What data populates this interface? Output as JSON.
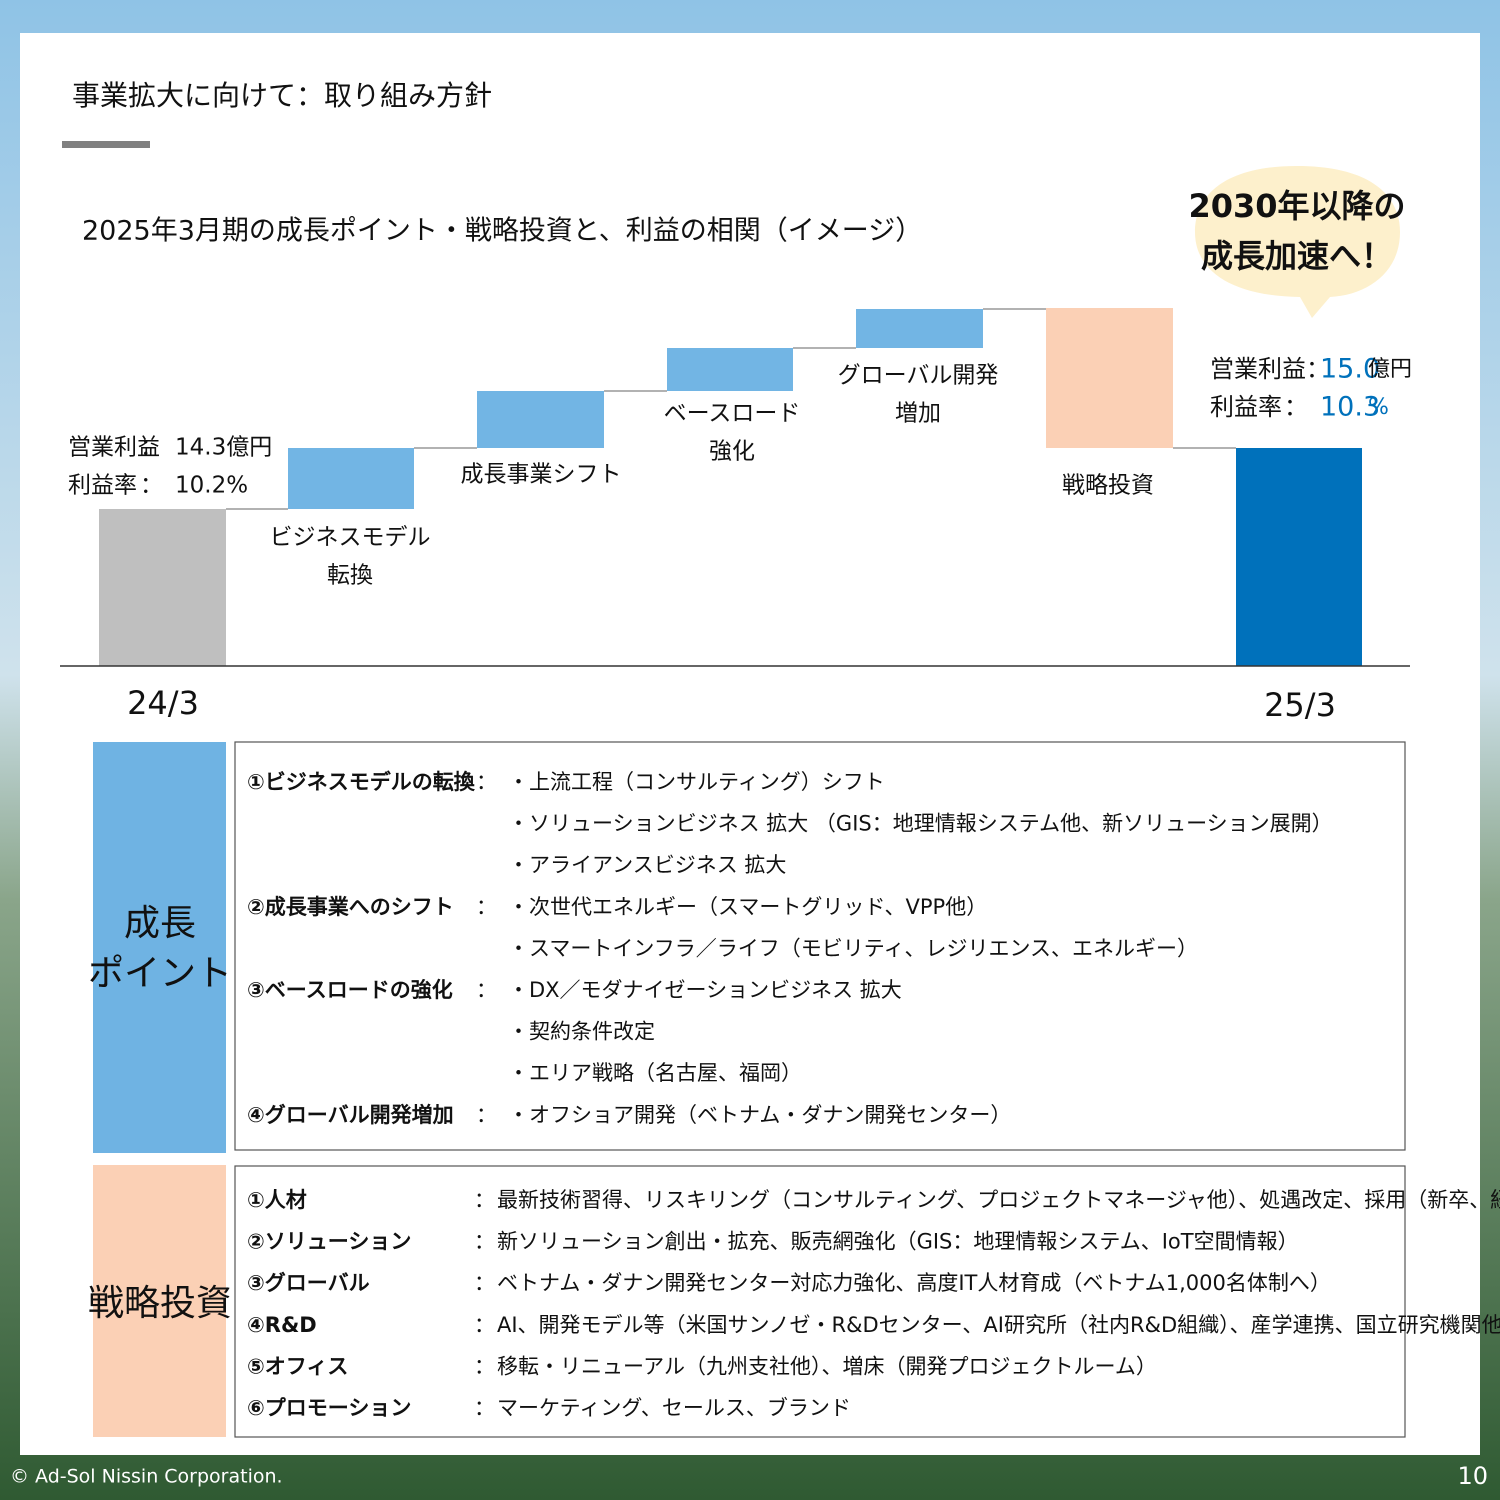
{
  "header": {
    "title": "事業拡大に向けて：取り組み方針"
  },
  "chart": {
    "subtitle": "2025年3月期の成長ポイント・戦略投資と、利益の相関（イメージ）",
    "callout": [
      "2030年以降の",
      "成長加速へ！"
    ],
    "start": {
      "profit_label": "営業利益",
      "margin_label": "利益率",
      "colon": "：",
      "profit_value": "14.3億円",
      "margin_value": "10.2%"
    },
    "end": {
      "profit_label": "営業利益：",
      "margin_label": "利益率",
      "colon": "：",
      "profit_value": "15.0",
      "profit_unit": "億円",
      "margin_value": "10.3",
      "margin_unit": "%"
    },
    "steps": [
      [
        "ビジネスモデル",
        "転換"
      ],
      [
        "成長事業シフト"
      ],
      [
        "ベースロード",
        "強化"
      ],
      [
        "グローバル開発",
        "増加"
      ],
      [
        "戦略投資"
      ]
    ],
    "x_labels": [
      "24/3",
      "25/3"
    ]
  },
  "growth": {
    "label": [
      "成長",
      "ポイント"
    ],
    "colon": "：",
    "groups": [
      {
        "heading": "①ビジネスモデルの転換",
        "items": [
          "・上流工程（コンサルティング）シフト",
          "・ソリューションビジネス 拡大 （GIS：地理情報システム他、新ソリューション展開）",
          "・アライアンスビジネス 拡大"
        ]
      },
      {
        "heading": "②成長事業へのシフト",
        "items": [
          "・次世代エネルギー（スマートグリッド、VPP他）",
          "・スマートインフラ／ライフ（モビリティ、レジリエンス、エネルギー）"
        ]
      },
      {
        "heading": "③ベースロードの強化",
        "items": [
          "・DX／モダナイゼーションビジネス 拡大",
          "・契約条件改定",
          "・エリア戦略（名古屋、福岡）"
        ]
      },
      {
        "heading": "④グローバル開発増加",
        "items": [
          "・オフショア開発（ベトナム・ダナン開発センター）"
        ]
      }
    ]
  },
  "investment": {
    "label": "戦略投資",
    "colon": "：",
    "rows": [
      {
        "heading": "①人材",
        "text": "最新技術習得、リスキリング（コンサルティング、プロジェクトマネージャ他）、処遇改定、採用（新卒、経験者）"
      },
      {
        "heading": "②ソリューション",
        "text": "新ソリューション創出・拡充、販売網強化（GIS：地理情報システム、IoT空間情報）"
      },
      {
        "heading": "③グローバル",
        "text": "ベトナム・ダナン開発センター対応力強化、高度IT人材育成（ベトナム1,000名体制へ）"
      },
      {
        "heading": "④R&D",
        "text": "AI、開発モデル等（米国サンノゼ・R&Dセンター、AI研究所（社内R&D組織）、産学連携、国立研究機関他）"
      },
      {
        "heading": "⑤オフィス",
        "text": "移転・リニューアル（九州支社他）、増床（開発プロジェクトルーム）"
      },
      {
        "heading": "⑥プロモーション",
        "text": "マーケティング、セールス、ブランド"
      }
    ]
  },
  "footer": {
    "copyright": "© Ad-Sol Nissin Corporation.",
    "page": "10"
  }
}
